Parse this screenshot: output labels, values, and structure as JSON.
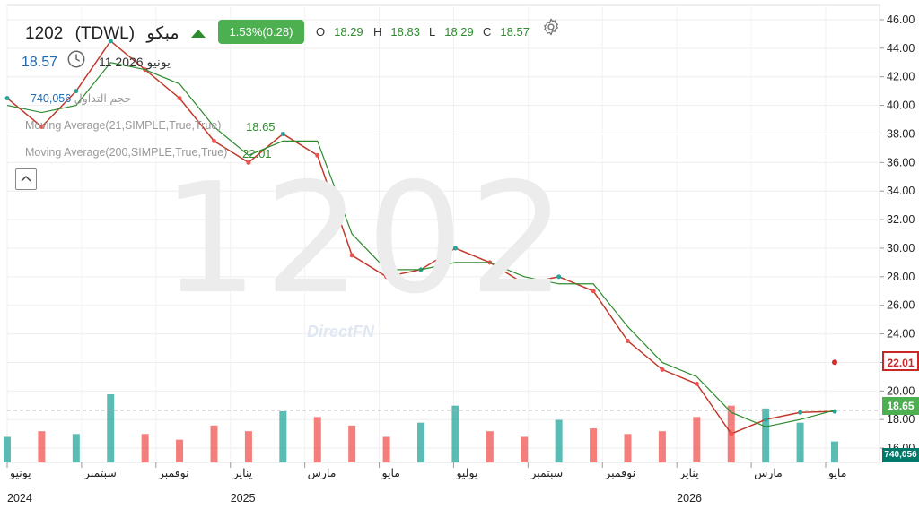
{
  "header": {
    "symbol_code": "1202",
    "ticker": "(TDWL)",
    "company": "مبكو",
    "change_pct": "1.53%(0.28)",
    "open_label": "O",
    "open": "18.29",
    "high_label": "H",
    "high": "18.83",
    "low_label": "L",
    "low": "18.29",
    "close_label": "C",
    "close": "18.57",
    "last_price": "18.57",
    "date_label": "11 2026 يونيو",
    "icons": [
      "triangle-up-icon",
      "settings-gear-icon",
      "clock-icon",
      "collapse-chevron-icon"
    ]
  },
  "indicators": {
    "volume_label": "حجم التداول",
    "volume_value": "740,056",
    "ma21_label": "Moving Average(21,SIMPLE,True,True)",
    "ma21_value": "18.65",
    "ma200_label": "Moving Average(200,SIMPLE,True,True)",
    "ma200_value": "22.01"
  },
  "watermark": {
    "symbol": "1202",
    "brand": "DirectFN"
  },
  "colors": {
    "up": "#26a69a",
    "down": "#ef5350",
    "ma21": "#2e8b2e",
    "ma200": "#d32f2f",
    "tag_ma200": "#c62828",
    "tag_ma21": "#4caf50",
    "tag_volume": "#00796b",
    "badge": "#4caf50"
  },
  "chart_data": {
    "type": "line",
    "subtype": "candlestick with volume and moving averages",
    "title": "1202 (TDWL) مبكو",
    "xlabel": "",
    "ylabel": "",
    "ylim": [
      15,
      47
    ],
    "yticks": [
      "16.00",
      "18.00",
      "20.00",
      "22.00",
      "24.00",
      "26.00",
      "28.00",
      "30.00",
      "32.00",
      "34.00",
      "36.00",
      "38.00",
      "40.00",
      "42.00",
      "44.00",
      "46.00"
    ],
    "x_ticks": [
      {
        "label": "يونيو",
        "year": "2024"
      },
      {
        "label": "سبتمبر",
        "year": ""
      },
      {
        "label": "نوفمبر",
        "year": ""
      },
      {
        "label": "يناير",
        "year": "2025"
      },
      {
        "label": "مارس",
        "year": ""
      },
      {
        "label": "مايو",
        "year": ""
      },
      {
        "label": "يوليو",
        "year": ""
      },
      {
        "label": "سبتمبر",
        "year": ""
      },
      {
        "label": "نوفمبر",
        "year": ""
      },
      {
        "label": "يناير",
        "year": "2026"
      },
      {
        "label": "مارس",
        "year": ""
      },
      {
        "label": "مايو",
        "year": ""
      }
    ],
    "price_series": {
      "name": "price",
      "x": [
        "2024-06",
        "2024-07",
        "2024-08",
        "2024-09",
        "2024-10",
        "2024-11",
        "2024-12",
        "2025-01",
        "2025-02",
        "2025-03",
        "2025-04",
        "2025-05",
        "2025-06",
        "2025-07",
        "2025-08",
        "2025-09",
        "2025-10",
        "2025-11",
        "2025-12",
        "2026-01",
        "2026-02",
        "2026-03",
        "2026-04",
        "2026-05",
        "2026-06"
      ],
      "values": [
        40.5,
        38.5,
        41.0,
        44.5,
        42.5,
        40.5,
        37.5,
        36.0,
        38.0,
        36.5,
        29.5,
        28.0,
        28.5,
        30.0,
        29.0,
        27.5,
        28.0,
        27.0,
        23.5,
        21.5,
        20.5,
        17.0,
        18.0,
        18.5,
        18.57
      ]
    },
    "series": [
      {
        "name": "Moving Average(21,SIMPLE,True,True)",
        "last_value": 18.65,
        "values": [
          40.0,
          39.5,
          40.0,
          43.0,
          42.5,
          41.5,
          38.5,
          36.5,
          37.5,
          37.5,
          31.0,
          28.5,
          28.5,
          29.0,
          29.0,
          28.0,
          27.5,
          27.5,
          24.5,
          22.0,
          21.0,
          18.5,
          17.5,
          18.0,
          18.65
        ]
      },
      {
        "name": "Moving Average(200,SIMPLE,True,True)",
        "last_value": 22.01,
        "values": [
          null,
          null,
          null,
          null,
          null,
          null,
          null,
          null,
          null,
          null,
          null,
          null,
          null,
          null,
          null,
          null,
          null,
          null,
          null,
          null,
          null,
          null,
          null,
          null,
          22.01
        ]
      }
    ],
    "volume": {
      "name": "حجم التداول",
      "last_value": "740,056",
      "values": [
        0.9,
        1.1,
        1.0,
        2.4,
        1.0,
        0.8,
        1.3,
        1.1,
        1.8,
        1.6,
        1.3,
        0.9,
        1.4,
        2.0,
        1.1,
        0.9,
        1.5,
        1.2,
        1.0,
        1.1,
        1.6,
        2.0,
        1.9,
        1.4,
        0.74
      ]
    },
    "last_price_line": 18.65,
    "grid": true,
    "legend": "top-left"
  }
}
